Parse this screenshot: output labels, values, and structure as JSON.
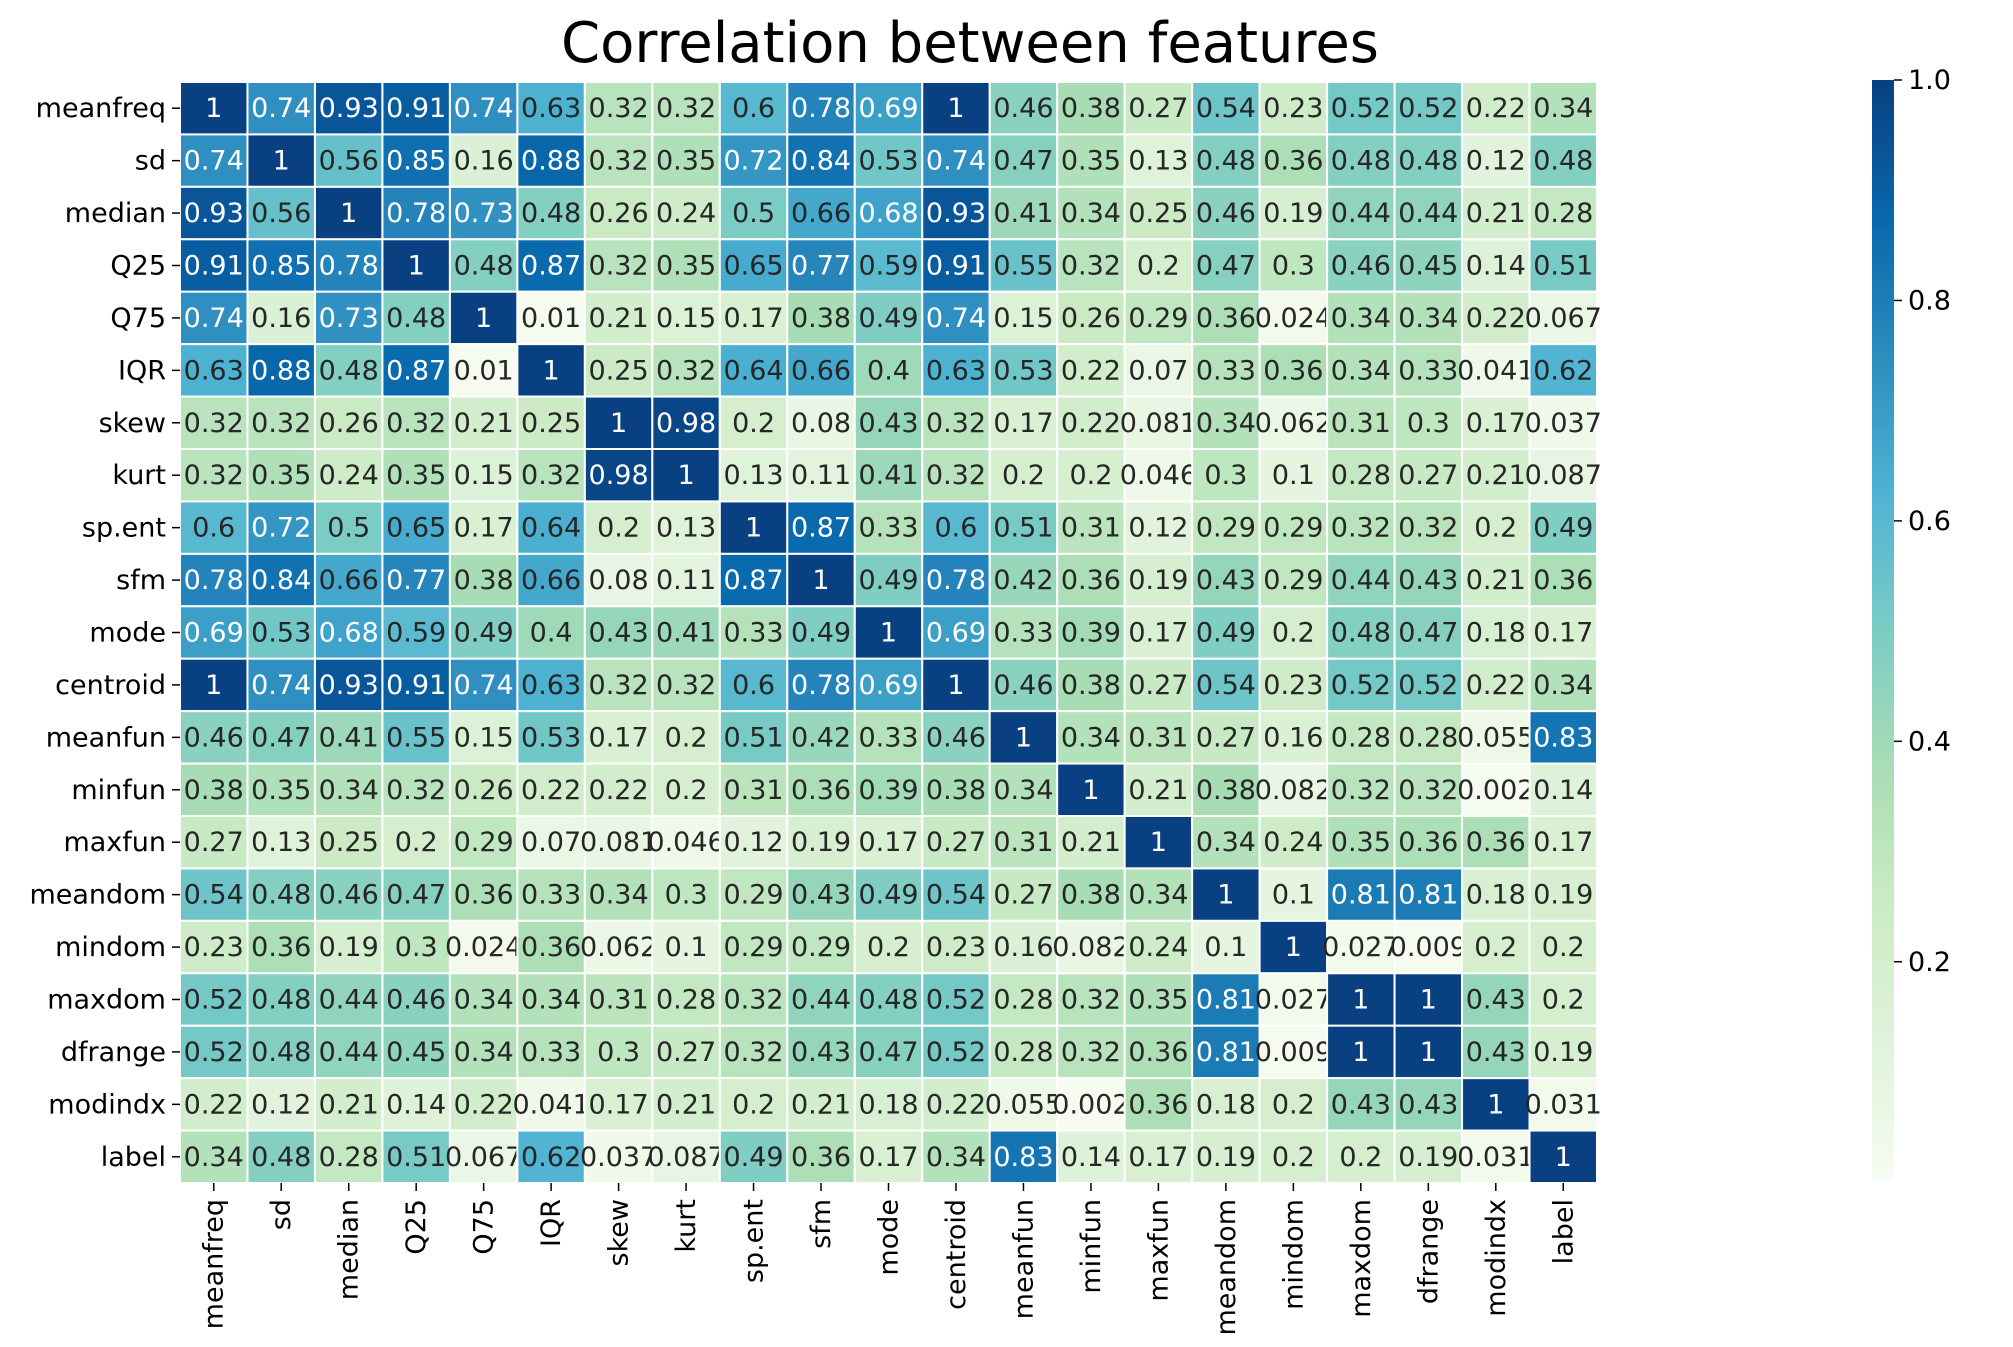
{
  "chart_data": {
    "type": "heatmap",
    "title": "Correlation between features",
    "labels": [
      "meanfreq",
      "sd",
      "median",
      "Q25",
      "Q75",
      "IQR",
      "skew",
      "kurt",
      "sp.ent",
      "sfm",
      "mode",
      "centroid",
      "meanfun",
      "minfun",
      "maxfun",
      "meandom",
      "mindom",
      "maxdom",
      "dfrange",
      "modindx",
      "label"
    ],
    "values": [
      [
        1,
        0.74,
        0.93,
        0.91,
        0.74,
        0.63,
        0.32,
        0.32,
        0.6,
        0.78,
        0.69,
        1,
        0.46,
        0.38,
        0.27,
        0.54,
        0.23,
        0.52,
        0.52,
        0.22,
        0.34
      ],
      [
        0.74,
        1,
        0.56,
        0.85,
        0.16,
        0.88,
        0.32,
        0.35,
        0.72,
        0.84,
        0.53,
        0.74,
        0.47,
        0.35,
        0.13,
        0.48,
        0.36,
        0.48,
        0.48,
        0.12,
        0.48
      ],
      [
        0.93,
        0.56,
        1,
        0.78,
        0.73,
        0.48,
        0.26,
        0.24,
        0.5,
        0.66,
        0.68,
        0.93,
        0.41,
        0.34,
        0.25,
        0.46,
        0.19,
        0.44,
        0.44,
        0.21,
        0.28
      ],
      [
        0.91,
        0.85,
        0.78,
        1,
        0.48,
        0.87,
        0.32,
        0.35,
        0.65,
        0.77,
        0.59,
        0.91,
        0.55,
        0.32,
        0.2,
        0.47,
        0.3,
        0.46,
        0.45,
        0.14,
        0.51
      ],
      [
        0.74,
        0.16,
        0.73,
        0.48,
        1,
        0.01,
        0.21,
        0.15,
        0.17,
        0.38,
        0.49,
        0.74,
        0.15,
        0.26,
        0.29,
        0.36,
        0.024,
        0.34,
        0.34,
        0.22,
        0.067
      ],
      [
        0.63,
        0.88,
        0.48,
        0.87,
        0.01,
        1,
        0.25,
        0.32,
        0.64,
        0.66,
        0.4,
        0.63,
        0.53,
        0.22,
        0.07,
        0.33,
        0.36,
        0.34,
        0.33,
        0.041,
        0.62
      ],
      [
        0.32,
        0.32,
        0.26,
        0.32,
        0.21,
        0.25,
        1,
        0.98,
        0.2,
        0.08,
        0.43,
        0.32,
        0.17,
        0.22,
        0.081,
        0.34,
        0.062,
        0.31,
        0.3,
        0.17,
        0.037
      ],
      [
        0.32,
        0.35,
        0.24,
        0.35,
        0.15,
        0.32,
        0.98,
        1,
        0.13,
        0.11,
        0.41,
        0.32,
        0.2,
        0.2,
        0.046,
        0.3,
        0.1,
        0.28,
        0.27,
        0.21,
        0.087
      ],
      [
        0.6,
        0.72,
        0.5,
        0.65,
        0.17,
        0.64,
        0.2,
        0.13,
        1,
        0.87,
        0.33,
        0.6,
        0.51,
        0.31,
        0.12,
        0.29,
        0.29,
        0.32,
        0.32,
        0.2,
        0.49
      ],
      [
        0.78,
        0.84,
        0.66,
        0.77,
        0.38,
        0.66,
        0.08,
        0.11,
        0.87,
        1,
        0.49,
        0.78,
        0.42,
        0.36,
        0.19,
        0.43,
        0.29,
        0.44,
        0.43,
        0.21,
        0.36
      ],
      [
        0.69,
        0.53,
        0.68,
        0.59,
        0.49,
        0.4,
        0.43,
        0.41,
        0.33,
        0.49,
        1,
        0.69,
        0.33,
        0.39,
        0.17,
        0.49,
        0.2,
        0.48,
        0.47,
        0.18,
        0.17
      ],
      [
        1,
        0.74,
        0.93,
        0.91,
        0.74,
        0.63,
        0.32,
        0.32,
        0.6,
        0.78,
        0.69,
        1,
        0.46,
        0.38,
        0.27,
        0.54,
        0.23,
        0.52,
        0.52,
        0.22,
        0.34
      ],
      [
        0.46,
        0.47,
        0.41,
        0.55,
        0.15,
        0.53,
        0.17,
        0.2,
        0.51,
        0.42,
        0.33,
        0.46,
        1,
        0.34,
        0.31,
        0.27,
        0.16,
        0.28,
        0.28,
        0.055,
        0.83
      ],
      [
        0.38,
        0.35,
        0.34,
        0.32,
        0.26,
        0.22,
        0.22,
        0.2,
        0.31,
        0.36,
        0.39,
        0.38,
        0.34,
        1,
        0.21,
        0.38,
        0.082,
        0.32,
        0.32,
        0.002,
        0.14
      ],
      [
        0.27,
        0.13,
        0.25,
        0.2,
        0.29,
        0.07,
        0.081,
        0.046,
        0.12,
        0.19,
        0.17,
        0.27,
        0.31,
        0.21,
        1,
        0.34,
        0.24,
        0.35,
        0.36,
        0.36,
        0.17
      ],
      [
        0.54,
        0.48,
        0.46,
        0.47,
        0.36,
        0.33,
        0.34,
        0.3,
        0.29,
        0.43,
        0.49,
        0.54,
        0.27,
        0.38,
        0.34,
        1,
        0.1,
        0.81,
        0.81,
        0.18,
        0.19
      ],
      [
        0.23,
        0.36,
        0.19,
        0.3,
        0.024,
        0.36,
        0.062,
        0.1,
        0.29,
        0.29,
        0.2,
        0.23,
        0.16,
        0.082,
        0.24,
        0.1,
        1,
        0.027,
        0.009,
        0.2,
        0.2
      ],
      [
        0.52,
        0.48,
        0.44,
        0.46,
        0.34,
        0.34,
        0.31,
        0.28,
        0.32,
        0.44,
        0.48,
        0.52,
        0.28,
        0.32,
        0.35,
        0.81,
        0.027,
        1,
        1,
        0.43,
        0.2
      ],
      [
        0.52,
        0.48,
        0.44,
        0.45,
        0.34,
        0.33,
        0.3,
        0.27,
        0.32,
        0.43,
        0.47,
        0.52,
        0.28,
        0.32,
        0.36,
        0.81,
        0.009,
        1,
        1,
        0.43,
        0.19
      ],
      [
        0.22,
        0.12,
        0.21,
        0.14,
        0.22,
        0.041,
        0.17,
        0.21,
        0.2,
        0.21,
        0.18,
        0.22,
        0.055,
        0.002,
        0.36,
        0.18,
        0.2,
        0.43,
        0.43,
        1,
        0.031
      ],
      [
        0.34,
        0.48,
        0.28,
        0.51,
        0.067,
        0.62,
        0.037,
        0.087,
        0.49,
        0.36,
        0.17,
        0.34,
        0.83,
        0.14,
        0.17,
        0.19,
        0.2,
        0.2,
        0.19,
        0.031,
        1
      ]
    ],
    "colorscale": "GnBu",
    "colors": [
      "#f7fcf0",
      "#e0f3db",
      "#ccebc5",
      "#a8ddb5",
      "#7bccc4",
      "#4eb3d3",
      "#2b8cbe",
      "#0868ac",
      "#084081"
    ],
    "vmin": 0.002,
    "vmax": 1,
    "colorbar_ticks": [
      "0.2",
      "0.4",
      "0.6",
      "0.8",
      "1.0"
    ],
    "cell_border_color": "#ffffff",
    "annotations": true,
    "grid": false,
    "xlabel": "",
    "ylabel": ""
  }
}
